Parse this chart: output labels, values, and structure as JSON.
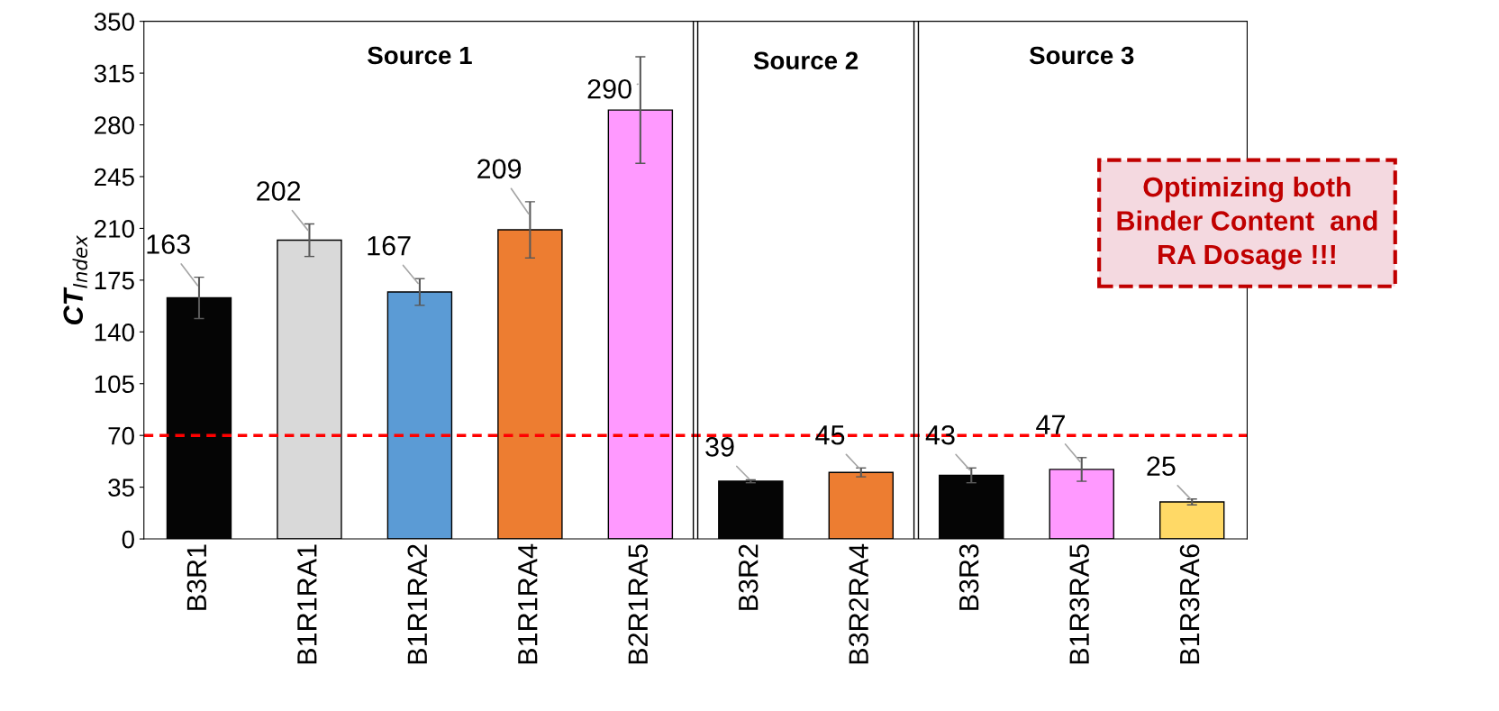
{
  "chart_data": {
    "type": "bar",
    "ylabel": "CT$_{Index}$",
    "categories": [
      "B3R1",
      "B1R1RA1",
      "B1R1RA2",
      "B1R1RA4",
      "B2R1RA5",
      "B3R2",
      "B3R2RA4",
      "B3R3",
      "B1R3RA5",
      "B1R3RA6"
    ],
    "values": [
      163,
      202,
      167,
      209,
      290,
      39,
      45,
      43,
      47,
      25
    ],
    "errors": [
      14,
      11,
      9,
      19,
      36,
      1,
      3,
      5,
      8,
      2
    ],
    "colors": [
      "#050505",
      "#d9d9d9",
      "#5b9bd5",
      "#ed7d31",
      "#ff99ff",
      "#050505",
      "#ed7d31",
      "#050505",
      "#ff99ff",
      "#ffd966"
    ],
    "data_labels": true,
    "ylim": [
      0,
      350
    ],
    "yticks": [
      0,
      35,
      70,
      105,
      140,
      175,
      210,
      245,
      280,
      315,
      350
    ],
    "ref_lines": [
      {
        "axis": "y",
        "value": 70,
        "color": "#ff0000",
        "line_style": "dashed"
      }
    ],
    "annotations": [
      "Source 1",
      "Source 2",
      "Source 3",
      "Optimizing both\nBinder Content  and\nRA Dosage !!!"
    ],
    "grid": false,
    "legend": false
  }
}
